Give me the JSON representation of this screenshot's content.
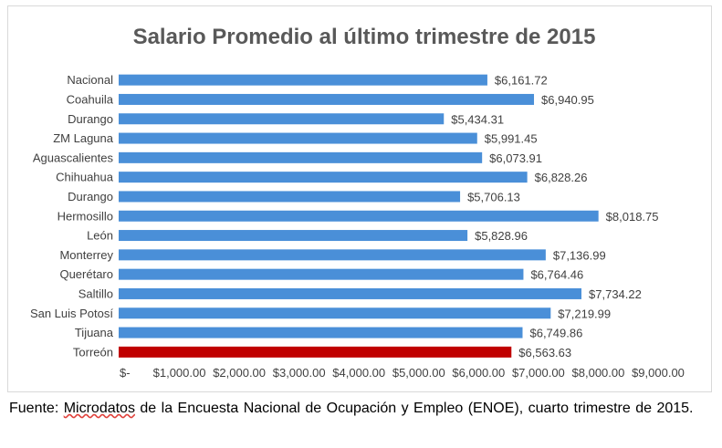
{
  "chart_data": {
    "type": "bar",
    "orientation": "horizontal",
    "title": "Salario Promedio al último trimestre de 2015",
    "categories": [
      "Nacional",
      "Coahuila",
      "Durango",
      "ZM Laguna",
      "Aguascalientes",
      "Chihuahua",
      "Durango",
      "Hermosillo",
      "León",
      "Monterrey",
      "Querétaro",
      "Saltillo",
      "San Luis Potosí",
      "Tijuana",
      "Torreón"
    ],
    "values": [
      6161.72,
      6940.95,
      5434.31,
      5991.45,
      6073.91,
      6828.26,
      5706.13,
      8018.75,
      5828.96,
      7136.99,
      6764.46,
      7734.22,
      7219.99,
      6749.86,
      6563.63
    ],
    "value_labels": [
      "$6,161.72",
      "$6,940.95",
      "$5,434.31",
      "$5,991.45",
      "$6,073.91",
      "$6,828.26",
      "$5,706.13",
      "$8,018.75",
      "$5,828.96",
      "$7,136.99",
      "$6,764.46",
      "$7,734.22",
      "$7,219.99",
      "$6,749.86",
      "$6,563.63"
    ],
    "xlim": [
      0,
      9000
    ],
    "x_ticks": [
      0,
      1000,
      2000,
      3000,
      4000,
      5000,
      6000,
      7000,
      8000,
      9000
    ],
    "x_tick_labels": [
      "$-",
      "$1,000.00",
      "$2,000.00",
      "$3,000.00",
      "$4,000.00",
      "$5,000.00",
      "$6,000.00",
      "$7,000.00",
      "$8,000.00",
      "$9,000.00"
    ],
    "grid": false,
    "legend": "none",
    "colors": {
      "default": "#4a8fd8",
      "highlight": "#c00000",
      "highlight_category": "Torreón"
    }
  },
  "source": {
    "prefix": "Fuente: ",
    "underlined": "Microdatos",
    "rest": " de la Encuesta Nacional de Ocupación y Empleo (ENOE), cuarto trimestre de 2015."
  }
}
